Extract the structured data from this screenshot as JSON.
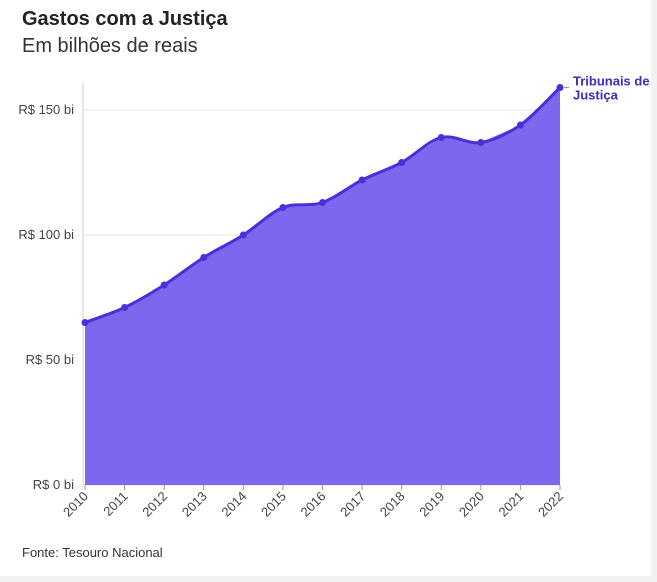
{
  "header": {
    "title": "Gastos com a Justiça",
    "subtitle": "Em bilhões de reais"
  },
  "footer": {
    "source": "Fonte: Tesouro Nacional"
  },
  "colors": {
    "area_fill": "#7b68ee",
    "line": "#4b2fd9",
    "label": "#3d2bbd",
    "grid": "#e6e6e6"
  },
  "chart_data": {
    "type": "area",
    "x": [
      "2010",
      "2011",
      "2012",
      "2013",
      "2014",
      "2015",
      "2016",
      "2017",
      "2018",
      "2019",
      "2020",
      "2021",
      "2022"
    ],
    "series": [
      {
        "name": "Tribunais de Justiça",
        "values": [
          65,
          71,
          80,
          91,
          100,
          111,
          113,
          122,
          129,
          139,
          137,
          144,
          159
        ]
      }
    ],
    "yticks": [
      0,
      50,
      100,
      150
    ],
    "yticklabels": [
      "R$ 0 bi",
      "R$ 50 bi",
      "R$ 100 bi",
      "R$ 150 bi"
    ],
    "ylim": [
      0,
      160
    ],
    "grid": true,
    "legend": "direct label at end of line"
  }
}
